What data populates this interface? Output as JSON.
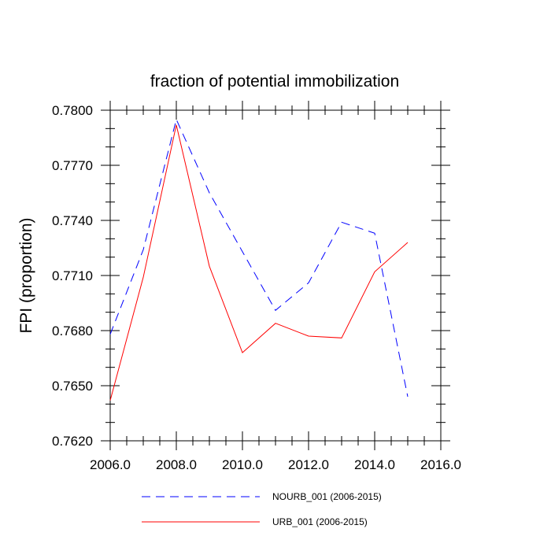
{
  "chart_data": {
    "type": "line",
    "title": "fraction of potential immobilization",
    "xlabel": "",
    "ylabel": "FPI  (proportion)",
    "xlim": [
      2006,
      2016
    ],
    "ylim": [
      0.762,
      0.78
    ],
    "x_ticks": [
      2006,
      2008,
      2010,
      2012,
      2014,
      2016
    ],
    "x_tick_labels": [
      "2006.0",
      "2008.0",
      "2010.0",
      "2012.0",
      "2014.0",
      "2016.0"
    ],
    "y_ticks": [
      0.762,
      0.765,
      0.768,
      0.771,
      0.774,
      0.777,
      0.78
    ],
    "y_tick_labels": [
      "0.7620",
      "0.7650",
      "0.7680",
      "0.7710",
      "0.7740",
      "0.7770",
      "0.7800"
    ],
    "x": [
      2006,
      2007,
      2008,
      2009,
      2010,
      2011,
      2012,
      2013,
      2014,
      2015
    ],
    "series": [
      {
        "name": "NOURB_001 (2006-2015)",
        "color": "#0000ff",
        "dash": "dashed",
        "values": [
          0.7678,
          0.7724,
          0.7795,
          0.7755,
          0.7723,
          0.7691,
          0.7706,
          0.7739,
          0.7733,
          0.7644
        ]
      },
      {
        "name": "URB_001 (2006-2015)",
        "color": "#ff0000",
        "dash": "solid",
        "values": [
          0.7642,
          0.7709,
          0.7792,
          0.7715,
          0.7668,
          0.7684,
          0.7677,
          0.7676,
          0.7712,
          0.7728
        ]
      }
    ],
    "legend_position": "bottom",
    "grid": false
  }
}
